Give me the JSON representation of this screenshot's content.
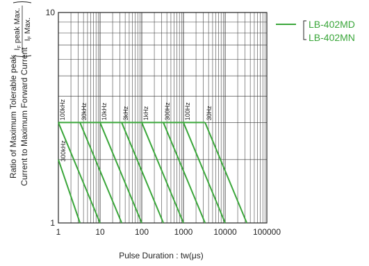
{
  "chart_data": {
    "type": "line",
    "title": "",
    "xlabel": "Pulse Duration : tw(μs)",
    "ylabel_line1": "Ratio of Maximum Tolerable peak",
    "ylabel_line2": "Current to Maximum Forward Current",
    "ylabel_fraction": {
      "numerator": "I",
      "numerator_sub": "F",
      "numerator_rest": " peak Max.",
      "denominator": "I",
      "denominator_sub": "F",
      "denominator_rest": " Max."
    },
    "x_scale": "log",
    "y_scale": "log",
    "xlim": [
      1,
      100000
    ],
    "ylim": [
      1,
      10
    ],
    "x_ticks": [
      {
        "value": 1,
        "label": "1"
      },
      {
        "value": 10,
        "label": "10"
      },
      {
        "value": 100,
        "label": "100"
      },
      {
        "value": 1000,
        "label": "1000"
      },
      {
        "value": 10000,
        "label": "10000"
      },
      {
        "value": 100000,
        "label": "100000"
      }
    ],
    "y_ticks": [
      {
        "value": 1,
        "label": "1"
      },
      {
        "value": 10,
        "label": "10"
      }
    ],
    "grid": true,
    "legend": {
      "placement": "top-right",
      "color": "#3aa63a",
      "entries": [
        "LB-402MD",
        "LB-402MN"
      ]
    },
    "plateau_value": 3,
    "series": [
      {
        "label": "300kHz",
        "points": [
          [
            1,
            2
          ],
          [
            3.3,
            1
          ]
        ]
      },
      {
        "label": "100kHz",
        "points": [
          [
            1,
            3
          ],
          [
            10,
            1
          ]
        ]
      },
      {
        "label": "30kHz",
        "points": [
          [
            3.3,
            3
          ],
          [
            33,
            1
          ]
        ]
      },
      {
        "label": "10kHz",
        "points": [
          [
            10,
            3
          ],
          [
            100,
            1
          ]
        ]
      },
      {
        "label": "3kHz",
        "points": [
          [
            33,
            3
          ],
          [
            330,
            1
          ]
        ]
      },
      {
        "label": "1kHz",
        "points": [
          [
            100,
            3
          ],
          [
            1000,
            1
          ]
        ]
      },
      {
        "label": "300Hz",
        "points": [
          [
            330,
            3
          ],
          [
            3300,
            1
          ]
        ]
      },
      {
        "label": "100Hz",
        "points": [
          [
            1000,
            3
          ],
          [
            10000,
            1
          ]
        ]
      },
      {
        "label": "30Hz",
        "points": [
          [
            3300,
            3
          ],
          [
            33000,
            1
          ]
        ]
      }
    ]
  }
}
